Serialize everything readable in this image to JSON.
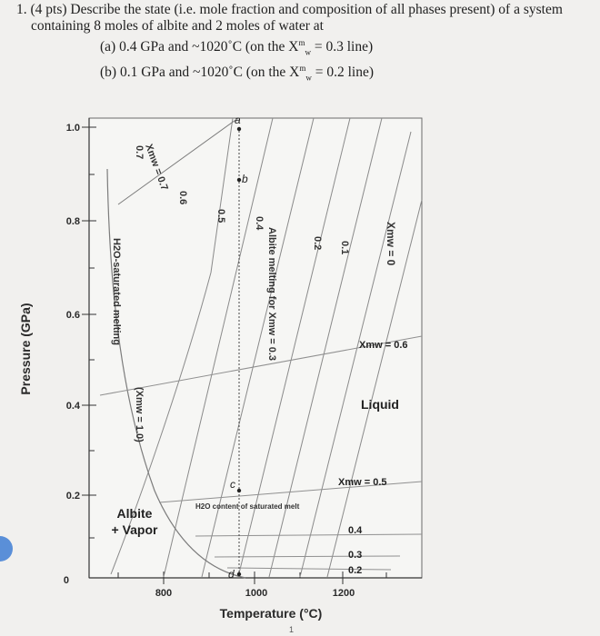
{
  "question": {
    "number": "1.",
    "points": "(4 pts)",
    "stem_line1": "Describe the state (i.e. mole fraction and composition of all phases present) of a system",
    "stem_line2": "containing 8 moles of albite and 2 moles of water at",
    "part_a": {
      "label": "(a)",
      "conditions": "0.4 GPa and ~1020˚C (on the X",
      "sup": "m",
      "sub": "w",
      "tail": " = 0.3 line)"
    },
    "part_b": {
      "label": "(b)",
      "conditions": "0.1 GPa and ~1020˚C (on the X",
      "sup": "m",
      "sub": "w",
      "tail": " = 0.2 line)"
    }
  },
  "chart_data": {
    "type": "line",
    "xlabel": "Temperature (°C)",
    "ylabel": "Pressure (GPa)",
    "x_ticks": [
      "800",
      "1000",
      "1200"
    ],
    "y_ticks": [
      "0",
      "0.2",
      "0.4",
      "0.6",
      "0.8",
      "1.0"
    ],
    "xlim": [
      700,
      1250
    ],
    "ylim": [
      0,
      1.0
    ],
    "solidus_label": "H2O-saturated melting",
    "solidus_annotation": "(Xmw = 1.0)",
    "isopleth_labels": [
      "0.7",
      "0.6",
      "0.5",
      "0.4",
      "0.3",
      "0.2",
      "0.1",
      "0"
    ],
    "isopleth_title": "Albite melting for Xmw = 0.3",
    "top_isopleth": "Xmw = 0.7",
    "zero_isopleth": "Xmw = 0",
    "saturated_contours": [
      "Xmw = 0.6",
      "Xmw = 0.5",
      "0.4",
      "0.3",
      "0.2"
    ],
    "saturated_title": "H2O content of saturated melt",
    "field_labels": [
      "Albite",
      "+ Vapor",
      "Liquid"
    ],
    "points": [
      {
        "name": "a",
        "x": 1020,
        "y": 1.0
      },
      {
        "name": "b",
        "x": 1020,
        "y": 0.88
      },
      {
        "name": "c",
        "x": 1020,
        "y": 0.25
      },
      {
        "name": "d",
        "x": 1020,
        "y": 0.01
      }
    ],
    "page_number": "1"
  }
}
